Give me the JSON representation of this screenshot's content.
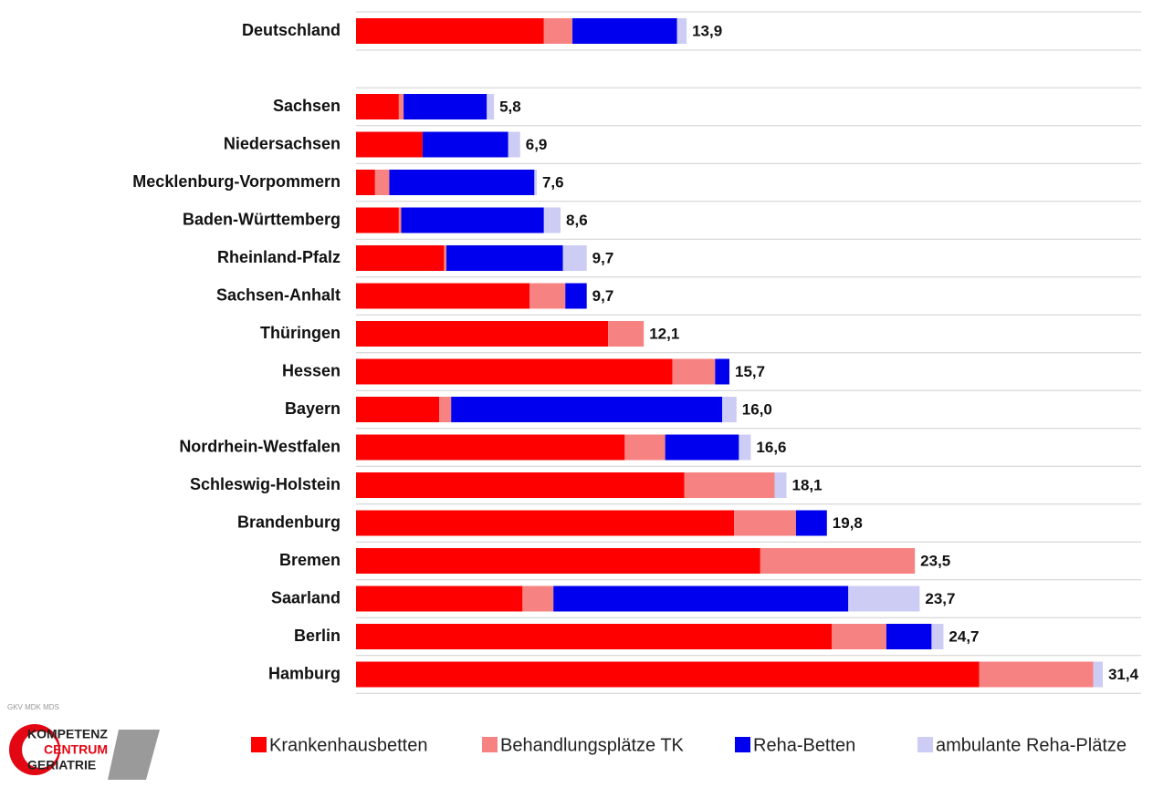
{
  "chart_data": {
    "type": "stacked_bar_horizontal",
    "categories": [
      "Deutschland",
      "Sachsen",
      "Niedersachsen",
      "Mecklenburg-Vorpommern",
      "Baden-Württemberg",
      "Rheinland-Pfalz",
      "Sachsen-Anhalt",
      "Thüringen",
      "Hessen",
      "Bayern",
      "Nordrhein-Westfalen",
      "Schleswig-Holstein",
      "Brandenburg",
      "Bremen",
      "Saarland",
      "Berlin",
      "Hamburg"
    ],
    "series": [
      {
        "name": "Krankenhausbetten",
        "color": "#ff0000",
        "values": [
          7.9,
          1.8,
          2.8,
          0.8,
          1.8,
          3.7,
          7.3,
          10.6,
          13.3,
          3.5,
          11.3,
          13.8,
          15.9,
          17.0,
          7.0,
          20.0,
          26.2
        ]
      },
      {
        "name": "Behandlungsplätze TK",
        "color": "#f78282",
        "values": [
          1.2,
          0.2,
          0,
          0.6,
          0.1,
          0.1,
          1.5,
          1.5,
          1.8,
          0.5,
          1.7,
          3.8,
          2.6,
          6.5,
          1.3,
          2.3,
          4.8
        ]
      },
      {
        "name": "Reha-Betten",
        "color": "#0000ee",
        "values": [
          4.4,
          3.5,
          3.6,
          6.1,
          6.0,
          4.9,
          0.9,
          0,
          0.6,
          11.4,
          3.1,
          0,
          1.3,
          0,
          12.4,
          1.9,
          0
        ]
      },
      {
        "name": "ambulante Reha-Plätze",
        "color": "#ccccf4",
        "values": [
          0.4,
          0.3,
          0.5,
          0.1,
          0.7,
          1.0,
          0,
          0,
          0,
          0.6,
          0.5,
          0.5,
          0,
          0,
          3.0,
          0.5,
          0.4
        ]
      }
    ],
    "totals": [
      13.9,
      5.8,
      6.9,
      7.6,
      8.6,
      9.7,
      9.7,
      12.1,
      15.7,
      16.0,
      16.6,
      18.1,
      19.8,
      23.5,
      23.7,
      24.7,
      31.4
    ],
    "total_labels": [
      "13,9",
      "5,8",
      "6,9",
      "7,6",
      "8,6",
      "9,7",
      "9,7",
      "12,1",
      "15,7",
      "16,0",
      "16,6",
      "18,1",
      "19,8",
      "23,5",
      "23,7",
      "24,7",
      "31,4"
    ],
    "logo": {
      "small": "GKV MDK MDS",
      "lines": [
        "KOMPETENZ",
        "CENTRUM",
        "GERIATRIE"
      ]
    }
  }
}
